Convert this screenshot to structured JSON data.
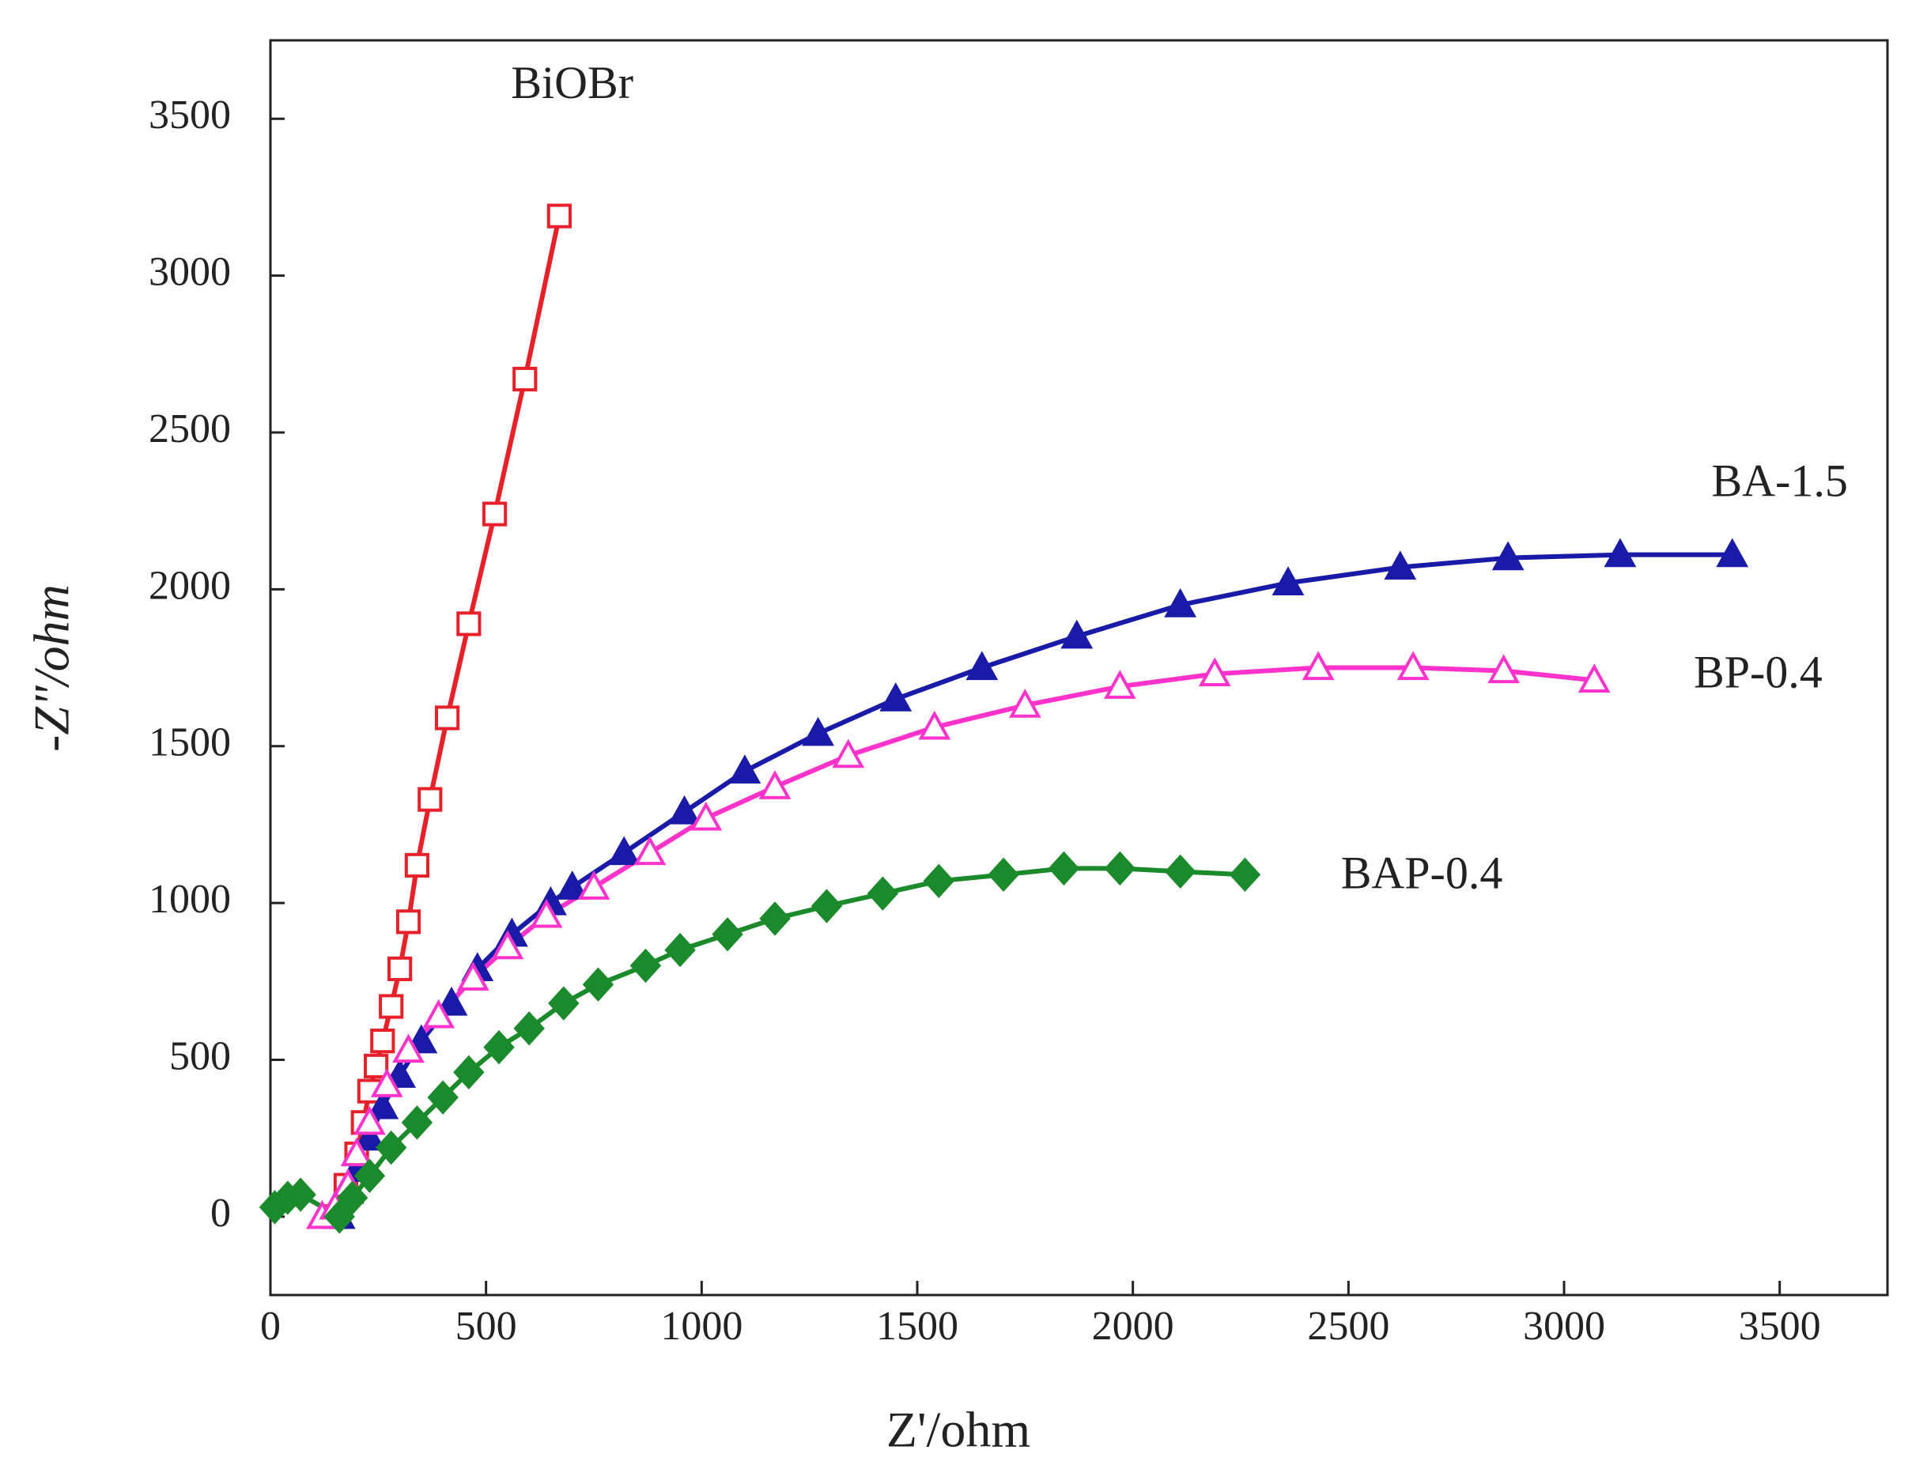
{
  "chart_data": {
    "type": "line",
    "xlabel": "Z'/ohm",
    "ylabel": "-Z\"/ohm",
    "xlim": [
      0,
      3750
    ],
    "ylim": [
      -250,
      3750
    ],
    "xticks": [
      0,
      500,
      1000,
      1500,
      2000,
      2500,
      3000,
      3500
    ],
    "yticks": [
      0,
      500,
      1000,
      1500,
      2000,
      2500,
      3000,
      3500
    ],
    "series": [
      {
        "name": "BiOBr",
        "color": "#e8202a",
        "marker": "square-open",
        "x": [
          150,
          175,
          200,
          215,
          230,
          245,
          260,
          280,
          300,
          320,
          340,
          370,
          410,
          460,
          520,
          590,
          670
        ],
        "y": [
          0,
          100,
          200,
          300,
          400,
          480,
          560,
          670,
          790,
          940,
          1120,
          1330,
          1590,
          1890,
          2240,
          2670,
          3190
        ]
      },
      {
        "name": "BA-1.5",
        "color": "#1a1aa8",
        "marker": "triangle-filled",
        "x": [
          160,
          180,
          200,
          230,
          260,
          300,
          350,
          420,
          480,
          560,
          650,
          700,
          820,
          960,
          1100,
          1270,
          1450,
          1650,
          1870,
          2110,
          2360,
          2620,
          2870,
          3130,
          3390
        ],
        "y": [
          0,
          80,
          150,
          250,
          350,
          450,
          560,
          680,
          790,
          900,
          1000,
          1050,
          1160,
          1290,
          1420,
          1540,
          1650,
          1750,
          1850,
          1950,
          2020,
          2070,
          2100,
          2110,
          2110
        ]
      },
      {
        "name": "BP-0.4",
        "color": "#ff33cc",
        "marker": "triangle-open",
        "x": [
          120,
          150,
          180,
          200,
          230,
          270,
          320,
          390,
          470,
          550,
          640,
          750,
          880,
          1010,
          1170,
          1340,
          1540,
          1750,
          1970,
          2190,
          2430,
          2650,
          2860,
          3070
        ],
        "y": [
          0,
          30,
          100,
          200,
          300,
          420,
          530,
          640,
          760,
          860,
          960,
          1050,
          1160,
          1270,
          1370,
          1470,
          1560,
          1630,
          1690,
          1730,
          1750,
          1750,
          1740,
          1710
        ]
      },
      {
        "name": "BAP-0.4",
        "color": "#1a8a2a",
        "marker": "diamond-filled",
        "x": [
          10,
          40,
          70,
          160,
          190,
          230,
          280,
          340,
          400,
          460,
          530,
          600,
          680,
          760,
          870,
          950,
          1060,
          1170,
          1290,
          1420,
          1550,
          1700,
          1840,
          1970,
          2110,
          2260
        ],
        "y": [
          30,
          60,
          70,
          0,
          60,
          130,
          220,
          300,
          380,
          460,
          540,
          600,
          680,
          740,
          800,
          850,
          900,
          950,
          990,
          1030,
          1070,
          1090,
          1110,
          1110,
          1100,
          1090
        ]
      }
    ]
  }
}
